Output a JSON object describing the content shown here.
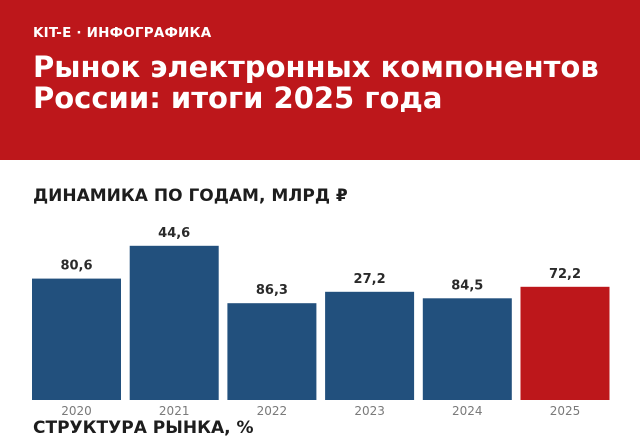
{
  "header": {
    "kicker": "KIT-E · ИНФОГРАФИКА",
    "title": "Рынок электронных компонентов России: итоги 2025 года"
  },
  "sections": {
    "dynamics_title": "ДИНАМИКА ПО ГОДАМ, МЛРД ₽",
    "structure_title": "СТРУКТУРА РЫНКА, %"
  },
  "colors": {
    "header_bg": "#bd171b",
    "bar": "#22507d",
    "bar_highlight": "#bd171b",
    "label": "#2a2a2a",
    "tick": "#7a7a7a"
  },
  "chart_data": {
    "type": "bar",
    "categories": [
      "2020",
      "2021",
      "2022",
      "2023",
      "2024",
      "2025"
    ],
    "values": [
      80.6,
      44.6,
      86.3,
      27.2,
      84.5,
      72.2
    ],
    "value_labels": [
      "80,6",
      "44,6",
      "86,3",
      "27,2",
      "84,5",
      "72,2"
    ],
    "highlight": "2025",
    "title": "ДИНАМИКА ПО ГОДАМ, МЛРД ₽",
    "xlabel": "",
    "ylabel": "",
    "grid": false,
    "legend": "none"
  }
}
